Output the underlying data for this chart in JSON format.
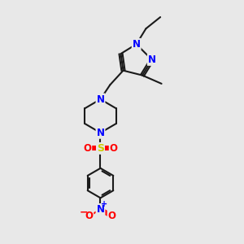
{
  "background_color": "#e8e8e8",
  "bond_color": "#1a1a1a",
  "nitrogen_color": "#0000ff",
  "oxygen_color": "#ff0000",
  "sulfur_color": "#cccc00",
  "bond_width": 1.5,
  "figsize": [
    3.0,
    3.0
  ],
  "dpi": 100,
  "xlim": [
    0,
    10
  ],
  "ylim": [
    0,
    10
  ]
}
